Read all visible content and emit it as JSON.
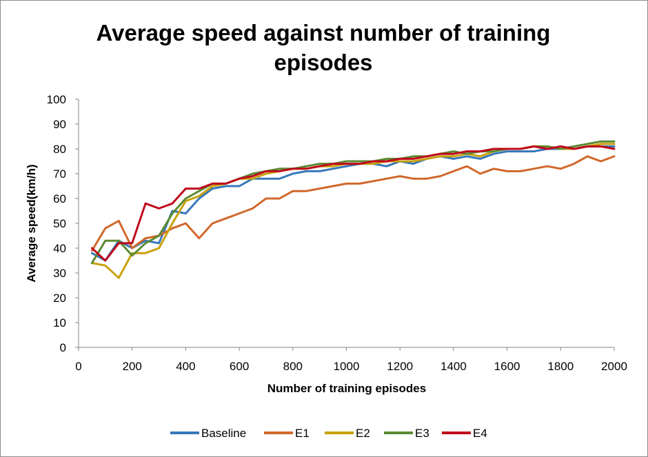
{
  "chart_data": {
    "type": "line",
    "title": "Average speed against number of training episodes",
    "title_lines": [
      "Average speed against number of training",
      "episodes"
    ],
    "xlabel": "Number of training episodes",
    "ylabel": "Average speed(km/h)",
    "xlim": [
      0,
      2000
    ],
    "ylim": [
      0,
      100
    ],
    "x_ticks": [
      0,
      200,
      400,
      600,
      800,
      1000,
      1200,
      1400,
      1600,
      1800,
      2000
    ],
    "y_ticks": [
      0,
      10,
      20,
      30,
      40,
      50,
      60,
      70,
      80,
      90,
      100
    ],
    "grid": false,
    "legend_position": "bottom",
    "x": [
      50,
      100,
      150,
      200,
      250,
      300,
      350,
      400,
      450,
      500,
      550,
      600,
      650,
      700,
      750,
      800,
      850,
      900,
      950,
      1000,
      1050,
      1100,
      1150,
      1200,
      1250,
      1300,
      1350,
      1400,
      1450,
      1500,
      1550,
      1600,
      1650,
      1700,
      1750,
      1800,
      1850,
      1900,
      1950,
      2000
    ],
    "series": [
      {
        "name": "Baseline",
        "color": "#3778b9",
        "values": [
          38,
          35,
          43,
          40,
          43,
          42,
          55,
          54,
          60,
          64,
          65,
          65,
          68,
          68,
          68,
          70,
          71,
          71,
          72,
          73,
          74,
          74,
          73,
          75,
          74,
          76,
          77,
          76,
          77,
          76,
          78,
          79,
          79,
          79,
          80,
          80,
          80,
          81,
          81,
          81
        ]
      },
      {
        "name": "E1",
        "color": "#d0672a",
        "values": [
          39,
          48,
          51,
          40,
          44,
          45,
          48,
          50,
          44,
          50,
          52,
          54,
          56,
          60,
          60,
          63,
          63,
          64,
          65,
          66,
          66,
          67,
          68,
          69,
          68,
          68,
          69,
          71,
          73,
          70,
          72,
          71,
          71,
          72,
          73,
          72,
          74,
          77,
          75,
          77
        ]
      },
      {
        "name": "E2",
        "color": "#c9a00b",
        "values": [
          34,
          33,
          28,
          38,
          38,
          40,
          50,
          59,
          61,
          65,
          66,
          68,
          68,
          70,
          71,
          72,
          72,
          73,
          73,
          74,
          74,
          74,
          75,
          75,
          75,
          76,
          77,
          77,
          78,
          77,
          79,
          80,
          80,
          81,
          81,
          80,
          80,
          81,
          82,
          82
        ]
      },
      {
        "name": "E3",
        "color": "#5a8a32",
        "values": [
          34,
          43,
          43,
          37,
          42,
          45,
          54,
          60,
          63,
          66,
          66,
          68,
          70,
          71,
          72,
          72,
          73,
          74,
          74,
          75,
          75,
          75,
          76,
          76,
          77,
          77,
          78,
          79,
          78,
          79,
          79,
          80,
          80,
          81,
          81,
          80,
          81,
          82,
          83,
          83
        ]
      },
      {
        "name": "E4",
        "color": "#c0081b",
        "values": [
          40,
          35,
          42,
          42,
          58,
          56,
          58,
          64,
          64,
          66,
          66,
          68,
          69,
          71,
          71,
          72,
          72,
          73,
          74,
          74,
          74,
          75,
          75,
          76,
          76,
          77,
          78,
          78,
          79,
          79,
          80,
          80,
          80,
          81,
          80,
          81,
          80,
          81,
          81,
          80
        ]
      }
    ]
  }
}
